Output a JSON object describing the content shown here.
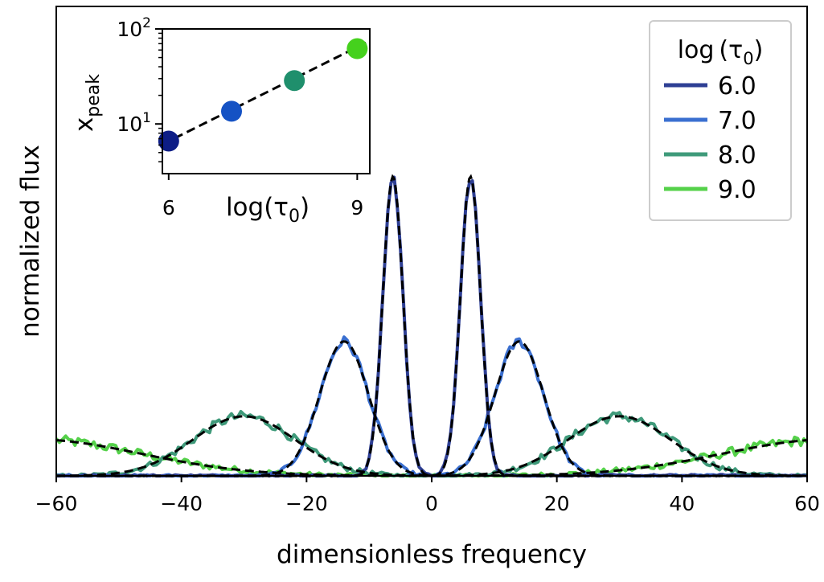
{
  "chart_data": [
    {
      "type": "line",
      "title": "",
      "xlabel": "dimensionless frequency",
      "ylabel": "normalized flux",
      "xlim": [
        -60,
        60
      ],
      "ylim": [
        0,
        1.0
      ],
      "x_ticks": [
        -60,
        -40,
        -20,
        0,
        20,
        40,
        60
      ],
      "x_tick_labels": [
        "−60",
        "−40",
        "−20",
        "0",
        "20",
        "40",
        "60"
      ],
      "y_ticks": [],
      "legend": {
        "title": "log (τ",
        "title_sub": "0",
        "title_close": ")",
        "placement": "top-right",
        "entries": [
          "6.0",
          "7.0",
          "8.0",
          "9.0"
        ]
      },
      "series": [
        {
          "name": "6.0",
          "color": "#2e3f94",
          "x_peak": 6.2,
          "sigma": 1.6,
          "peak": 0.98,
          "noise": 0.012
        },
        {
          "name": "7.0",
          "color": "#3a6fd0",
          "x_peak": 14.0,
          "sigma": 3.9,
          "peak": 0.44,
          "noise": 0.012
        },
        {
          "name": "8.0",
          "color": "#3f9a7a",
          "x_peak": 30.0,
          "sigma": 8.2,
          "peak": 0.195,
          "noise": 0.012
        },
        {
          "name": "9.0",
          "color": "#55d14a",
          "x_peak": 64.0,
          "sigma": 17.5,
          "peak": 0.12,
          "noise": 0.012
        }
      ],
      "fit_style": "black dashed"
    },
    {
      "type": "scatter",
      "title": "",
      "xlabel": "log(τ",
      "xlabel_sub": "0",
      "xlabel_close": ")",
      "ylabel": "x",
      "ylabel_sub": "peak",
      "scale_y": "log",
      "xlim": [
        5.9,
        9.2
      ],
      "ylim": [
        3.0,
        100
      ],
      "x_ticks": [
        6,
        9
      ],
      "x_tick_labels": [
        "6",
        "9"
      ],
      "y_ticks": [
        10,
        100
      ],
      "y_tick_labels": [
        {
          "base": "10",
          "exp": "1"
        },
        {
          "base": "10",
          "exp": "2"
        }
      ],
      "points": [
        {
          "x": 6,
          "y": 6.6,
          "color": "#0d1d86"
        },
        {
          "x": 7,
          "y": 13.6,
          "color": "#1552c4"
        },
        {
          "x": 8,
          "y": 28.6,
          "color": "#1f8f6c"
        },
        {
          "x": 9,
          "y": 62.0,
          "color": "#45d11d"
        }
      ],
      "fit_line": {
        "x": [
          5.9,
          9.2
        ],
        "y": [
          6.1,
          75.0
        ]
      }
    }
  ]
}
